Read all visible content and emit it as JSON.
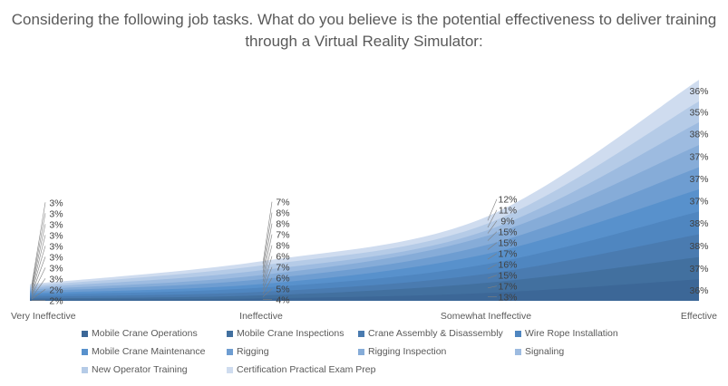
{
  "chart_data": {
    "type": "area",
    "stacked": true,
    "title": "Considering the following job tasks. What do you believe is the potential effectiveness to deliver training through a Virtual Reality Simulator:",
    "categories": [
      "Very Ineffective",
      "Ineffective",
      "Somewhat Ineffective",
      "Effective"
    ],
    "series": [
      {
        "name": "Mobile Crane Operations",
        "values": [
          2,
          4,
          13,
          36
        ],
        "color": "#3c6797"
      },
      {
        "name": "Mobile Crane Inspections",
        "values": [
          2,
          5,
          17,
          37
        ],
        "color": "#42709f"
      },
      {
        "name": "Crane Assembly & Disassembly",
        "values": [
          3,
          6,
          15,
          38
        ],
        "color": "#4a7bb0"
      },
      {
        "name": "Wire Rope Installation",
        "values": [
          3,
          7,
          16,
          38
        ],
        "color": "#4f86c0"
      },
      {
        "name": "Mobile Crane Maintenance",
        "values": [
          3,
          6,
          17,
          37
        ],
        "color": "#5891cc"
      },
      {
        "name": "Rigging",
        "values": [
          3,
          8,
          15,
          37
        ],
        "color": "#6e9dd1"
      },
      {
        "name": "Rigging Inspection",
        "values": [
          3,
          7,
          15,
          37
        ],
        "color": "#86acd8"
      },
      {
        "name": "Signaling",
        "values": [
          3,
          8,
          9,
          38
        ],
        "color": "#9dbbe0"
      },
      {
        "name": "New Operator Training",
        "values": [
          3,
          8,
          11,
          35
        ],
        "color": "#b5cbe7"
      },
      {
        "name": "Certification Practical Exam Prep",
        "values": [
          3,
          7,
          12,
          36
        ],
        "color": "#cfdcef"
      }
    ],
    "value_suffix": "%",
    "legend_position": "bottom",
    "grid": false
  }
}
